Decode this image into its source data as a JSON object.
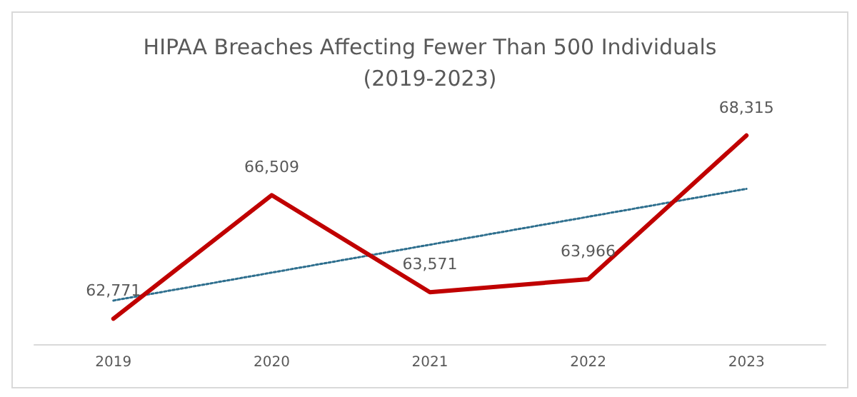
{
  "chart_data": {
    "type": "line",
    "title": "HIPAA Breaches Affecting Fewer Than 500 Individuals\n(2019-2023)",
    "categories": [
      "2019",
      "2020",
      "2021",
      "2022",
      "2023"
    ],
    "series": [
      {
        "color": "#c00000",
        "values": [
          62771,
          66509,
          63571,
          63966,
          68315
        ],
        "value_labels": [
          "62,771",
          "66,509",
          "63,571",
          "63,966",
          "68,315"
        ]
      },
      {
        "type": "line",
        "color": "#2e6f8e",
        "line_style": "dotted",
        "values": [
          63320,
          64165,
          65010,
          65855,
          66700
        ]
      }
    ],
    "grid": false,
    "marker": "none"
  }
}
